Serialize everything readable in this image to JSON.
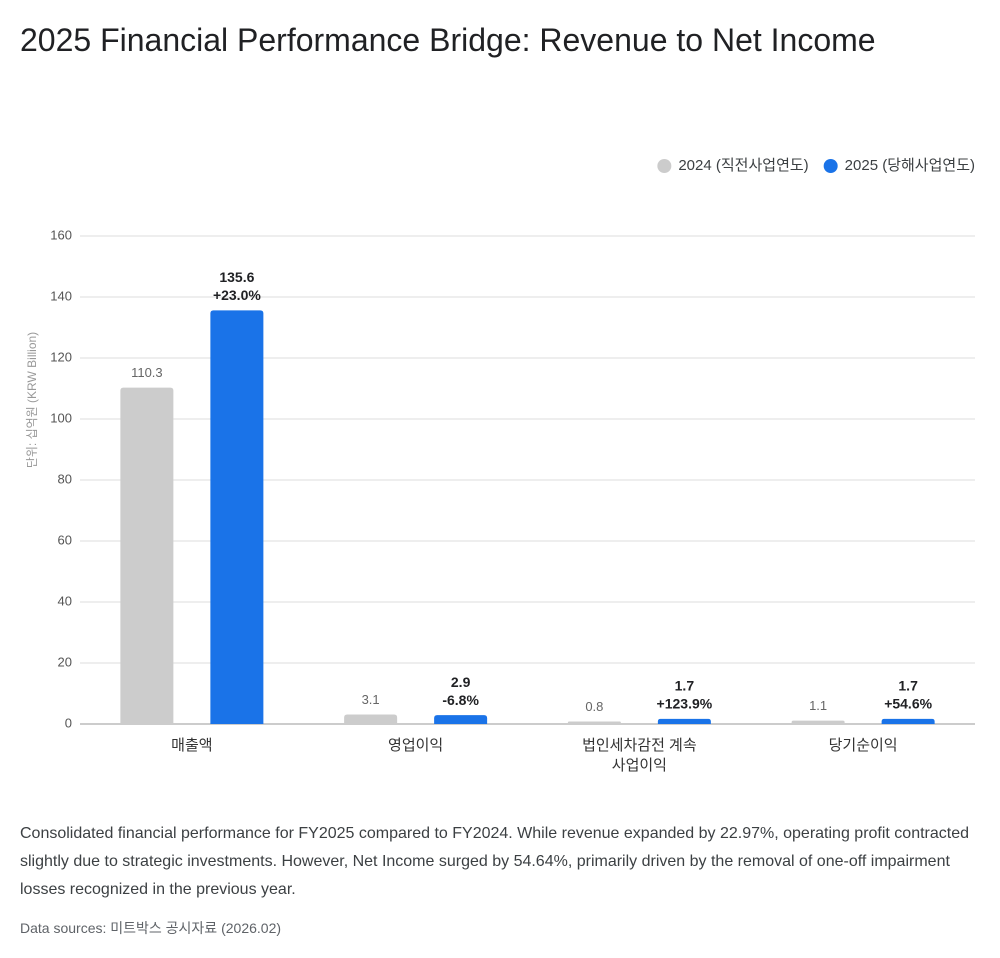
{
  "chart_data": {
    "type": "bar",
    "title": "2025 Financial Performance Bridge: Revenue to Net Income",
    "y_label": "단위: 십억원 (KRW Billion)",
    "categories": [
      "매출액",
      "영업이익",
      "법인세차감전 계속사업이익",
      "당기순이익"
    ],
    "series": [
      {
        "name": "2024 (직전사업연도)",
        "color": "#cccccc",
        "values": [
          110.3,
          3.1,
          0.8,
          1.1
        ]
      },
      {
        "name": "2025 (당해사업연도)",
        "color": "#1a73e8",
        "values": [
          135.6,
          2.9,
          1.7,
          1.7
        ],
        "changes": [
          "+23.0%",
          "-6.8%",
          "+123.9%",
          "+54.6%"
        ]
      }
    ],
    "ylim": [
      0,
      160
    ],
    "yticks": [
      0,
      20,
      40,
      60,
      80,
      100,
      120,
      140,
      160
    ],
    "grid": true,
    "legend": "top-right"
  },
  "caption": "Consolidated financial performance for FY2025 compared to FY2024. While revenue expanded by 22.97%, operating profit contracted slightly due to strategic investments. However, Net Income surged by 54.64%, primarily driven by the removal of one-off impairment losses recognized in the previous year.",
  "source": "Data sources: 미트박스 공시자료 (2026.02)"
}
